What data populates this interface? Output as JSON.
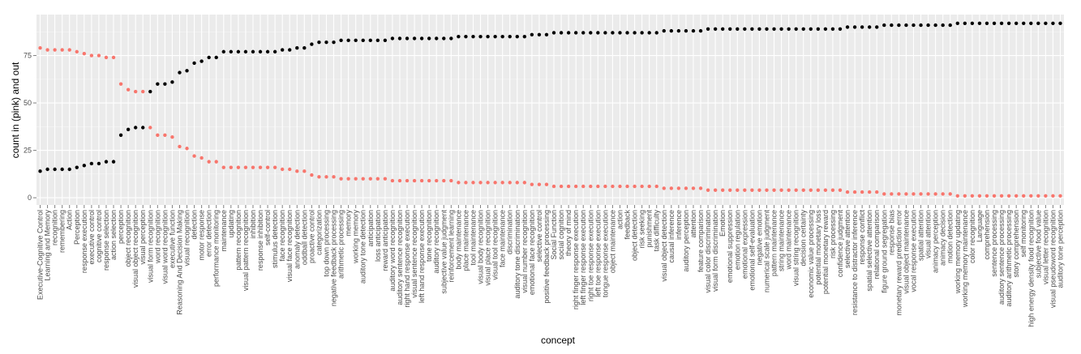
{
  "chart_data": {
    "type": "scatter",
    "x_label": "concept",
    "y_label": "count in (pink) and out",
    "categories": [
      "Executive-Cognitive Control",
      "Learning and Memory",
      "recognition",
      "remembering",
      "Action",
      "Perception",
      "response execution",
      "executive control",
      "cognitive control",
      "response selection",
      "action selection",
      "perception",
      "object recognition",
      "visual object recognition",
      "visual perception",
      "visual form recognition",
      "word recognition",
      "visual word recognition",
      "executive function",
      "Reasoning And Decision Making",
      "visual recognition",
      "detection",
      "motor response",
      "error detection",
      "performance monitoring",
      "maintenance",
      "updating",
      "pattern recognition",
      "visual pattern recognition",
      "inhibition",
      "response inhibition",
      "self-control",
      "stimulus detection",
      "face recognition",
      "visual face recognition",
      "anomaly detection",
      "oddball detection",
      "proactive control",
      "categorization",
      "top down processing",
      "negative feedback processing",
      "arithmetic processing",
      "memory",
      "working memory",
      "auditory tone detection",
      "anticipation",
      "loss anticipation",
      "reward anticipation",
      "auditory word recognition",
      "auditory sentence recognition",
      "right hand response execution",
      "visual sentence recognition",
      "left hand response execution",
      "tone recognition",
      "auditory recognition",
      "subjective value judgment",
      "reinforcement learning",
      "body maintenance",
      "place maintenance",
      "tool maintenance",
      "visual body recognition",
      "visual place recognition",
      "visual tool recognition",
      "face maintenance",
      "discrimination",
      "auditory tone discrimination",
      "visual number recognition",
      "emotional face recognition",
      "selective control",
      "positive feedback processing",
      "Social Function",
      "social cognition",
      "theory of mind",
      "right finger response execution",
      "left finger response execution",
      "right toe response execution",
      "left toe response execution",
      "tongue response execution",
      "object maintenance",
      "action",
      "feedback",
      "object detection",
      "risk seeking",
      "punishment",
      "task difficulty",
      "visual object detection",
      "causal inference",
      "inference",
      "auditory perception",
      "attention",
      "feature comparison",
      "visual color discrimination",
      "visual form discrimination",
      "Emotion",
      "emotional suppression",
      "emotion regulation",
      "emotional expression",
      "emotional self-evaluation",
      "negative emotion",
      "numerical scale judgment",
      "pattern maintenance",
      "string maintenance",
      "word maintenance",
      "visual string recognition",
      "decision certainty",
      "economic value processing",
      "potential monetary loss",
      "potential monetary reward",
      "risk processing",
      "confidence judgment",
      "selective attention",
      "resistance to distractor inference",
      "response conflict",
      "spatial selective attention",
      "relational comparison",
      "figure ground segregation",
      "response bias",
      "monetary reward prediction error",
      "visual object maintenance",
      "vocal response execution",
      "spatial attention",
      "visual attention",
      "animacy perception",
      "animacy decision",
      "motion detection",
      "working memory updating",
      "working memory maintenance",
      "color recognition",
      "Language",
      "comprehension",
      "sentence processing",
      "auditory sentence processing",
      "auditory arithmetic processing",
      "story comprehension",
      "self monitoring",
      "high energy density food recognition",
      "subjective food value",
      "visual letter recognition",
      "visual pseudoword recognition",
      "auditory tone perception"
    ],
    "series": [
      {
        "color": "#f8766d",
        "values": [
          79,
          78,
          78,
          78,
          78,
          77,
          76,
          75,
          75,
          74,
          74,
          60,
          57,
          56,
          56,
          37,
          33,
          33,
          32,
          27,
          26,
          22,
          21,
          19,
          19,
          16,
          16,
          16,
          16,
          16,
          16,
          16,
          16,
          15,
          15,
          14,
          14,
          12,
          11,
          11,
          11,
          10,
          10,
          10,
          10,
          10,
          10,
          10,
          9,
          9,
          9,
          9,
          9,
          9,
          9,
          9,
          9,
          8,
          8,
          8,
          8,
          8,
          8,
          8,
          8,
          8,
          8,
          7,
          7,
          7,
          6,
          6,
          6,
          6,
          6,
          6,
          6,
          6,
          6,
          6,
          6,
          6,
          6,
          6,
          6,
          5,
          5,
          5,
          5,
          5,
          5,
          4,
          4,
          4,
          4,
          4,
          4,
          4,
          4,
          4,
          4,
          4,
          4,
          4,
          4,
          4,
          4,
          4,
          4,
          4,
          3,
          3,
          3,
          3,
          3,
          2,
          2,
          2,
          2,
          2,
          2,
          2,
          2,
          2,
          2,
          1,
          1,
          1,
          1,
          1,
          1,
          1,
          1,
          1,
          1,
          1,
          1,
          1,
          1,
          1
        ]
      },
      {
        "color": "#000000",
        "values": [
          14,
          15,
          15,
          15,
          15,
          16,
          17,
          18,
          18,
          19,
          19,
          33,
          36,
          37,
          37,
          56,
          60,
          60,
          61,
          66,
          67,
          71,
          72,
          74,
          74,
          77,
          77,
          77,
          77,
          77,
          77,
          77,
          77,
          78,
          78,
          79,
          79,
          81,
          82,
          82,
          82,
          83,
          83,
          83,
          83,
          83,
          83,
          83,
          84,
          84,
          84,
          84,
          84,
          84,
          84,
          84,
          84,
          85,
          85,
          85,
          85,
          85,
          85,
          85,
          85,
          85,
          85,
          86,
          86,
          86,
          87,
          87,
          87,
          87,
          87,
          87,
          87,
          87,
          87,
          87,
          87,
          87,
          87,
          87,
          87,
          88,
          88,
          88,
          88,
          88,
          88,
          89,
          89,
          89,
          89,
          89,
          89,
          89,
          89,
          89,
          89,
          89,
          89,
          89,
          89,
          89,
          89,
          89,
          89,
          89,
          90,
          90,
          90,
          90,
          90,
          91,
          91,
          91,
          91,
          91,
          91,
          91,
          91,
          91,
          91,
          92,
          92,
          92,
          92,
          92,
          92,
          92,
          92,
          92,
          92,
          92,
          92,
          92,
          92,
          92
        ]
      }
    ],
    "ylim": [
      -3.8,
      96.6
    ],
    "yticks": [
      0,
      25,
      50,
      75
    ],
    "grid": true
  }
}
